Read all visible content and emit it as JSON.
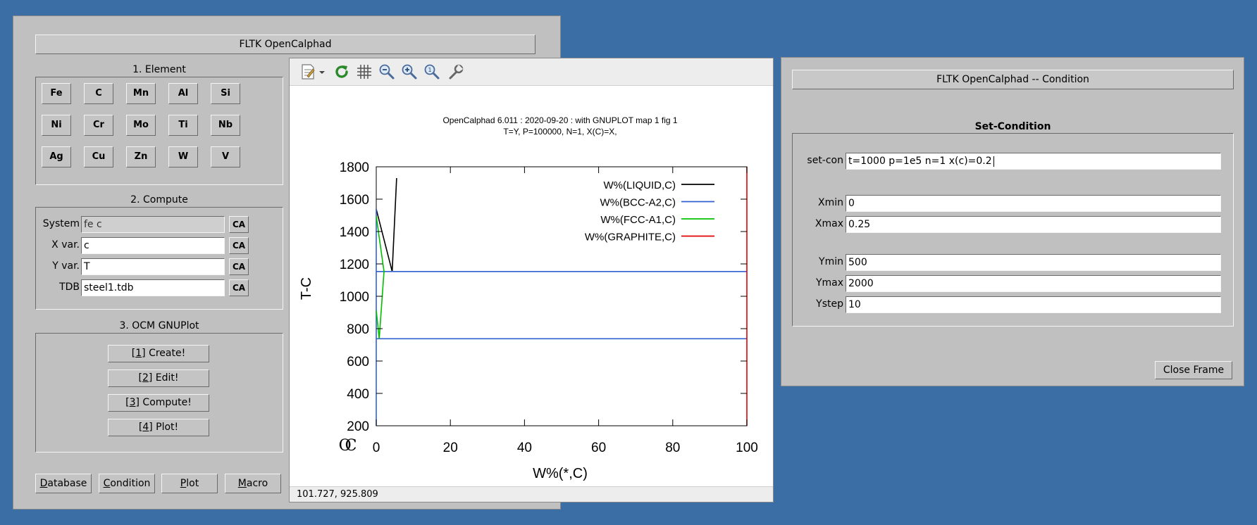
{
  "main": {
    "title": "FLTK OpenCalphad",
    "element_group": "1. Element",
    "elements": [
      "Fe",
      "C",
      "Mn",
      "Al",
      "Si",
      "Ni",
      "Cr",
      "Mo",
      "Ti",
      "Nb",
      "Ag",
      "Cu",
      "Zn",
      "W",
      "V"
    ],
    "compute_group": "2. Compute",
    "fields": [
      {
        "label": "System",
        "value": "fe c",
        "ca": "CA"
      },
      {
        "label": "X var.",
        "value": "c",
        "ca": "CA"
      },
      {
        "label": "Y var.",
        "value": "T",
        "ca": "CA"
      },
      {
        "label": "TDB",
        "value": "steel1.tdb",
        "ca": "CA"
      }
    ],
    "gnuplot_group": "3. OCM GNUPlot",
    "actions": [
      {
        "pre": "[",
        "key": "1",
        "post": "] Create!"
      },
      {
        "pre": "[",
        "key": "2",
        "post": "] Edit!"
      },
      {
        "pre": "[",
        "key": "3",
        "post": "] Compute!"
      },
      {
        "pre": "[",
        "key": "4",
        "post": "] Plot!"
      }
    ],
    "bottom_buttons": [
      {
        "key": "D",
        "rest": "atabase"
      },
      {
        "key": "C",
        "rest": "ondition"
      },
      {
        "key": "P",
        "rest": "lot"
      },
      {
        "key": "M",
        "rest": "acro"
      }
    ]
  },
  "plot": {
    "status": "101.727,  925.809",
    "toolbar_icons": [
      "export-icon",
      "replot-icon",
      "grid-icon",
      "zoom-previous-icon",
      "zoom-next-icon",
      "autoscale-icon",
      "settings-icon"
    ],
    "origin_glyph": "OC"
  },
  "chart_data": {
    "type": "line",
    "title": "OpenCalphad   6.011 :  2020-09-20 : with GNUPLOT map 1 fig 1",
    "subtitle": "T=Y,  P=100000, N=1, X(C)=X,",
    "xlabel": "W%(*,C)",
    "ylabel": "T-C",
    "xlim": [
      0,
      100
    ],
    "ylim": [
      200,
      1800
    ],
    "xticks": [
      0,
      20,
      40,
      60,
      80,
      100
    ],
    "yticks": [
      200,
      400,
      600,
      800,
      1000,
      1200,
      1400,
      1600,
      1800
    ],
    "legend_position": "top-right",
    "series": [
      {
        "name": "W%(LIQUID,C)",
        "color": "#000000",
        "segments": [
          [
            [
              0,
              1538
            ],
            [
              4.3,
              1153
            ],
            [
              5.5,
              1730
            ]
          ]
        ]
      },
      {
        "name": "W%(BCC-A2,C)",
        "color": "#3060d0",
        "segments": [
          [
            [
              0,
              1538
            ],
            [
              0,
              200
            ]
          ],
          [
            [
              0,
              1153
            ],
            [
              100,
              1153
            ]
          ],
          [
            [
              0,
              738
            ],
            [
              100,
              738
            ]
          ]
        ]
      },
      {
        "name": "W%(FCC-A1,C)",
        "color": "#00c000",
        "segments": [
          [
            [
              0,
              1495
            ],
            [
              2.1,
              1153
            ],
            [
              0.8,
              738
            ],
            [
              0,
              912
            ]
          ]
        ]
      },
      {
        "name": "W%(GRAPHITE,C)",
        "color": "#e00000",
        "segments": [
          [
            [
              100,
              200
            ],
            [
              100,
              1800
            ]
          ]
        ]
      }
    ]
  },
  "cond": {
    "title": "FLTK OpenCalphad -- Condition",
    "group": "Set-Condition",
    "setcon_label": "set-con",
    "setcon_value": "t=1000 p=1e5 n=1 x(c)=0.2",
    "fields": [
      {
        "label": "Xmin",
        "value": "0"
      },
      {
        "label": "Xmax",
        "value": "0.25"
      },
      {
        "label": "Ymin",
        "value": "500"
      },
      {
        "label": "Ymax",
        "value": "2000"
      },
      {
        "label": "Ystep",
        "value": "10"
      }
    ],
    "close_label": "Close Frame"
  }
}
